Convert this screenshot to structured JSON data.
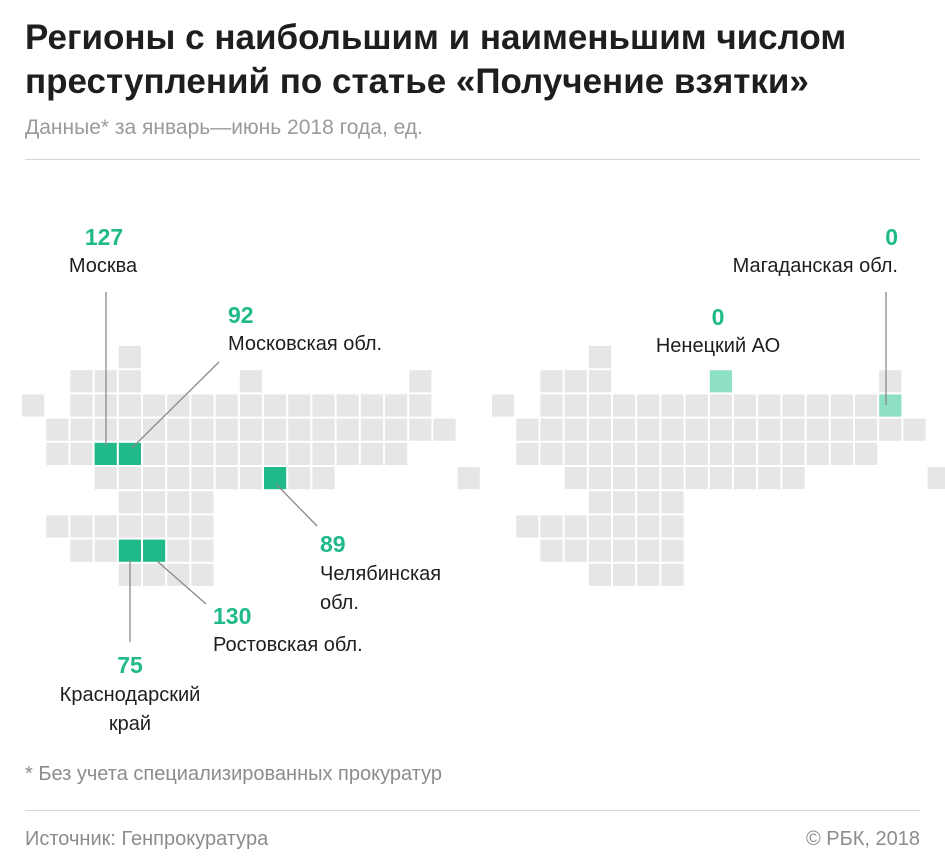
{
  "header": {
    "title": "Регионы с наибольшим и наименьшим числом преступлений по статье «Получение взятки»",
    "subtitle": "Данные* за январь—июнь 2018 года, ед."
  },
  "footer": {
    "footnote": "* Без учета специализированных прокуратур",
    "source": "Источник: Генпрокуратура",
    "copyright": "© РБК, 2018"
  },
  "colors": {
    "highlight": "#1fb98a",
    "highlight_light": "#8de0c5",
    "cell": "#e6e6e6"
  },
  "maps": {
    "most": {
      "regions": [
        {
          "id": "moscow",
          "value": "127",
          "name": "Москва"
        },
        {
          "id": "moscow_obl",
          "value": "92",
          "name": "Московская обл."
        },
        {
          "id": "chelyabinsk",
          "value": "89",
          "name_line1": "Челябинская",
          "name_line2": "обл."
        },
        {
          "id": "rostov",
          "value": "130",
          "name": "Ростовская обл."
        },
        {
          "id": "krasnodar",
          "value": "75",
          "name_line1": "Краснодарский",
          "name_line2": "край"
        }
      ]
    },
    "least": {
      "regions": [
        {
          "id": "magadan",
          "value": "0",
          "name": "Магаданская обл."
        },
        {
          "id": "nenets",
          "value": "0",
          "name": "Ненецкий АО"
        }
      ]
    }
  }
}
